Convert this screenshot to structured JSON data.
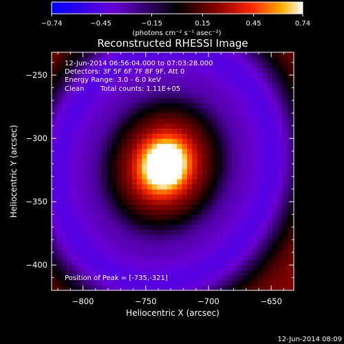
{
  "chart_data": {
    "type": "heatmap",
    "title": "Reconstructed RHESSI Image",
    "xlabel": "Heliocentric X (arcsec)",
    "ylabel": "Heliocentric Y (arcsec)",
    "xlim": [
      -825,
      -632
    ],
    "ylim": [
      -420,
      -232
    ],
    "x_ticks": [
      -800,
      -750,
      -700,
      -650
    ],
    "y_ticks": [
      -250,
      -300,
      -350,
      -400
    ],
    "x_tick_labels": [
      "−800",
      "−750",
      "−700",
      "−650"
    ],
    "y_tick_labels": [
      "−250",
      "−300",
      "−350",
      "−400"
    ],
    "colorbar": {
      "min": -0.74,
      "max": 0.74,
      "ticks": [
        -0.74,
        -0.45,
        -0.15,
        0.15,
        0.45,
        0.74
      ],
      "tick_labels": [
        "−0.74",
        "−0.45",
        "−0.15",
        "0.15",
        "0.45",
        "0.74"
      ],
      "label": "(photons cm⁻² s⁻¹ asec⁻²)"
    },
    "annotations": {
      "time_range": "12-Jun-2014 06:56:04.000 to 07:03:28.000",
      "detectors": "Detectors: 3F 5F 6F 7F 8F 9F, Att 0",
      "energy": "Energy Range: 3.0 - 6.0 keV",
      "method": "Clean",
      "counts": "Total counts: 1.11E+05",
      "peak": "Position of Peak = [-735,-321]"
    },
    "peak": {
      "x": -735,
      "y": -321,
      "value": 0.74
    },
    "footer_timestamp": "12-Jun-2014 08:09",
    "colors": {
      "colormap": [
        "#0000ff",
        "#6a00d8",
        "#000000",
        "#8a0000",
        "#ff2a00",
        "#ffb000",
        "#ffffff"
      ]
    }
  }
}
